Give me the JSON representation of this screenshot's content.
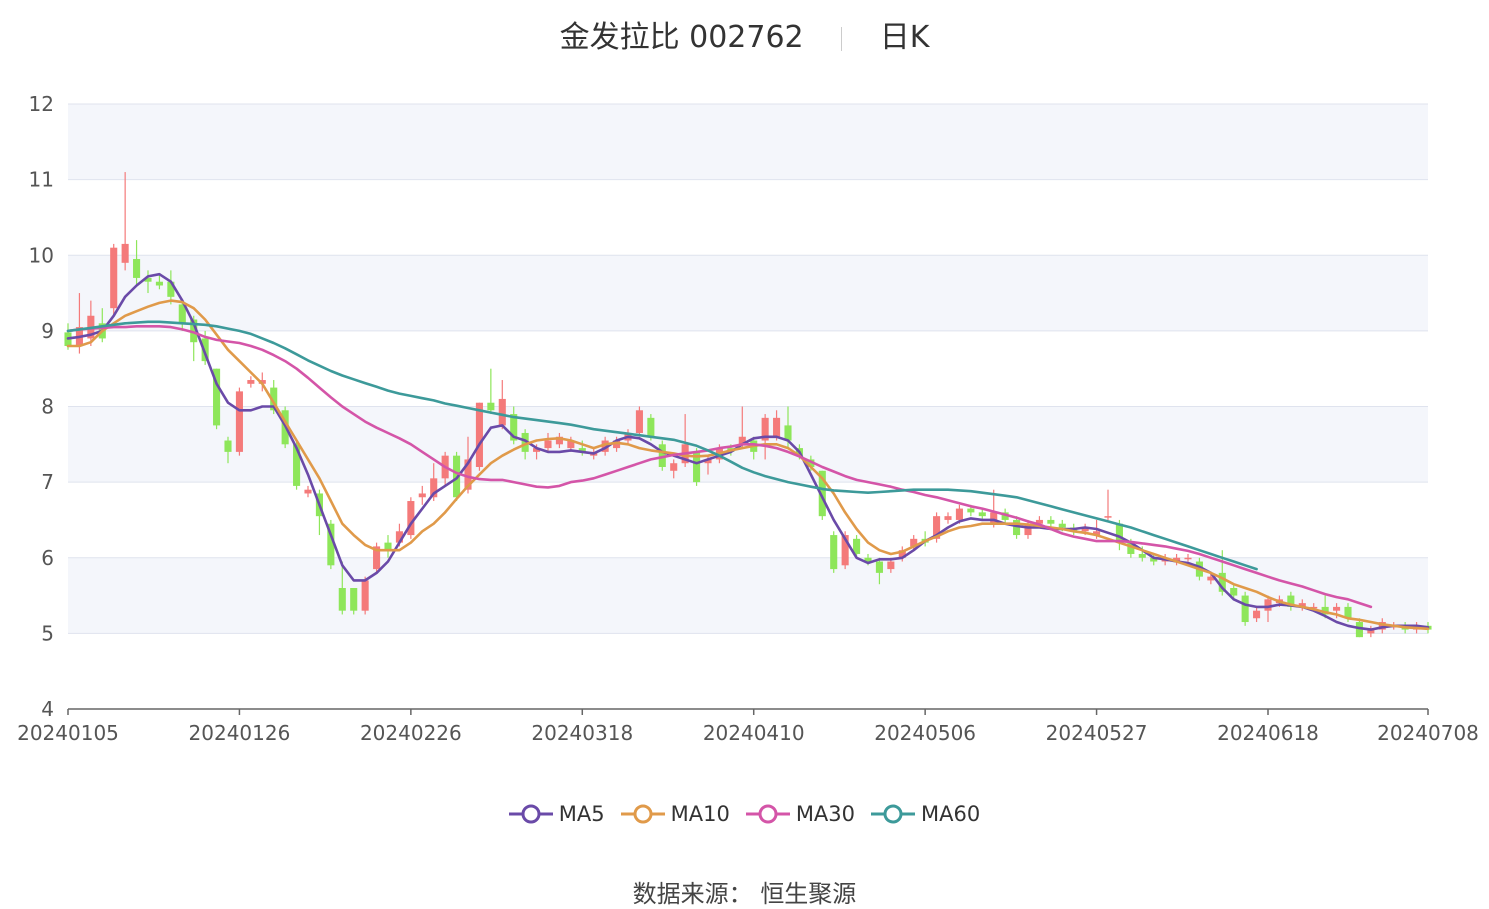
{
  "header": {
    "title": "金发拉比 002762",
    "period": "日K"
  },
  "footer": {
    "source_label": "数据来源：",
    "source_name": "恒生聚源"
  },
  "colors": {
    "up": "#f47a7a",
    "down": "#8ee65a",
    "band": "#f4f6fb",
    "grid": "#dfe3ee",
    "axis": "#555555",
    "MA5": "#6a4aa8",
    "MA10": "#e09a4a",
    "MA30": "#d455a8",
    "MA60": "#3d9a9a"
  },
  "chart_data": {
    "type": "candlestick",
    "yaxis": {
      "min": 4,
      "max": 12,
      "ticks": [
        4,
        5,
        6,
        7,
        8,
        9,
        10,
        11,
        12
      ]
    },
    "xaxis": {
      "tick_labels": [
        "20240105",
        "20240126",
        "20240226",
        "20240318",
        "20240410",
        "20240506",
        "20240527",
        "20240618",
        "20240708"
      ],
      "tick_indices": [
        0,
        15,
        30,
        45,
        60,
        75,
        90,
        105,
        119
      ]
    },
    "candles": [
      [
        8.98,
        8.8,
        9.1,
        8.75
      ],
      [
        8.8,
        9.05,
        9.5,
        8.7
      ],
      [
        8.9,
        9.2,
        9.4,
        8.8
      ],
      [
        9.1,
        8.9,
        9.3,
        8.85
      ],
      [
        9.3,
        10.1,
        10.15,
        9.2
      ],
      [
        9.9,
        10.15,
        11.1,
        9.8
      ],
      [
        9.95,
        9.7,
        10.2,
        9.6
      ],
      [
        9.7,
        9.65,
        9.8,
        9.5
      ],
      [
        9.65,
        9.6,
        9.75,
        9.55
      ],
      [
        9.65,
        9.45,
        9.8,
        9.35
      ],
      [
        9.35,
        9.1,
        9.4,
        9.0
      ],
      [
        9.15,
        8.85,
        9.2,
        8.6
      ],
      [
        8.9,
        8.6,
        9.0,
        8.55
      ],
      [
        8.5,
        7.75,
        8.5,
        7.7
      ],
      [
        7.55,
        7.4,
        7.6,
        7.25
      ],
      [
        7.4,
        8.2,
        8.25,
        7.35
      ],
      [
        8.3,
        8.35,
        8.4,
        8.25
      ],
      [
        8.3,
        8.35,
        8.45,
        8.2
      ],
      [
        8.25,
        7.95,
        8.35,
        7.9
      ],
      [
        7.95,
        7.5,
        8.0,
        7.45
      ],
      [
        7.5,
        6.95,
        7.55,
        6.9
      ],
      [
        6.85,
        6.9,
        6.95,
        6.8
      ],
      [
        6.85,
        6.55,
        6.9,
        6.3
      ],
      [
        6.45,
        5.9,
        6.5,
        5.85
      ],
      [
        5.6,
        5.3,
        5.95,
        5.25
      ],
      [
        5.6,
        5.3,
        5.6,
        5.25
      ],
      [
        5.3,
        5.7,
        5.75,
        5.25
      ],
      [
        5.85,
        6.15,
        6.2,
        5.8
      ],
      [
        6.2,
        6.1,
        6.3,
        6.0
      ],
      [
        6.2,
        6.35,
        6.45,
        6.15
      ],
      [
        6.3,
        6.75,
        6.8,
        6.25
      ],
      [
        6.8,
        6.85,
        6.95,
        6.7
      ],
      [
        6.8,
        7.05,
        7.25,
        6.75
      ],
      [
        7.05,
        7.35,
        7.4,
        6.95
      ],
      [
        7.35,
        6.8,
        7.4,
        6.75
      ],
      [
        6.9,
        7.3,
        7.6,
        6.85
      ],
      [
        7.2,
        8.05,
        8.05,
        7.15
      ],
      [
        8.05,
        7.95,
        8.5,
        7.9
      ],
      [
        7.75,
        8.1,
        8.35,
        7.7
      ],
      [
        7.9,
        7.55,
        8.0,
        7.5
      ],
      [
        7.65,
        7.4,
        7.7,
        7.3
      ],
      [
        7.4,
        7.45,
        7.5,
        7.3
      ],
      [
        7.45,
        7.55,
        7.65,
        7.4
      ],
      [
        7.5,
        7.6,
        7.65,
        7.45
      ],
      [
        7.45,
        7.55,
        7.6,
        7.4
      ],
      [
        7.45,
        7.4,
        7.55,
        7.35
      ],
      [
        7.35,
        7.4,
        7.45,
        7.3
      ],
      [
        7.4,
        7.55,
        7.6,
        7.35
      ],
      [
        7.45,
        7.55,
        7.6,
        7.4
      ],
      [
        7.55,
        7.65,
        7.7,
        7.5
      ],
      [
        7.65,
        7.95,
        8.0,
        7.6
      ],
      [
        7.85,
        7.6,
        7.9,
        7.55
      ],
      [
        7.5,
        7.2,
        7.55,
        7.15
      ],
      [
        7.15,
        7.25,
        7.3,
        7.05
      ],
      [
        7.25,
        7.5,
        7.9,
        7.2
      ],
      [
        7.4,
        7.0,
        7.45,
        6.95
      ],
      [
        7.25,
        7.3,
        7.35,
        7.1
      ],
      [
        7.3,
        7.45,
        7.5,
        7.25
      ],
      [
        7.45,
        7.4,
        7.5,
        7.35
      ],
      [
        7.5,
        7.6,
        8.0,
        7.45
      ],
      [
        7.55,
        7.4,
        7.6,
        7.3
      ],
      [
        7.55,
        7.85,
        7.9,
        7.3
      ],
      [
        7.6,
        7.85,
        7.95,
        7.55
      ],
      [
        7.75,
        7.55,
        8.0,
        7.45
      ],
      [
        7.45,
        7.35,
        7.5,
        7.3
      ],
      [
        7.3,
        7.2,
        7.35,
        7.15
      ],
      [
        7.15,
        6.55,
        7.15,
        6.5
      ],
      [
        6.3,
        5.85,
        6.35,
        5.8
      ],
      [
        5.9,
        6.3,
        6.35,
        5.85
      ],
      [
        6.25,
        6.05,
        6.3,
        6.0
      ],
      [
        6.0,
        5.95,
        6.05,
        5.9
      ],
      [
        5.95,
        5.8,
        6.0,
        5.65
      ],
      [
        5.85,
        5.95,
        6.0,
        5.8
      ],
      [
        6.0,
        6.1,
        6.15,
        5.95
      ],
      [
        6.15,
        6.25,
        6.3,
        6.1
      ],
      [
        6.25,
        6.2,
        6.35,
        6.15
      ],
      [
        6.25,
        6.55,
        6.6,
        6.2
      ],
      [
        6.5,
        6.55,
        6.6,
        6.45
      ],
      [
        6.5,
        6.65,
        6.7,
        6.45
      ],
      [
        6.65,
        6.6,
        6.7,
        6.55
      ],
      [
        6.6,
        6.55,
        6.65,
        6.5
      ],
      [
        6.45,
        6.6,
        6.9,
        6.4
      ],
      [
        6.6,
        6.5,
        6.65,
        6.45
      ],
      [
        6.5,
        6.3,
        6.55,
        6.25
      ],
      [
        6.3,
        6.45,
        6.5,
        6.25
      ],
      [
        6.45,
        6.5,
        6.55,
        6.4
      ],
      [
        6.5,
        6.45,
        6.55,
        6.4
      ],
      [
        6.45,
        6.4,
        6.5,
        6.35
      ],
      [
        6.4,
        6.35,
        6.45,
        6.3
      ],
      [
        6.35,
        6.4,
        6.45,
        6.3
      ],
      [
        6.3,
        6.35,
        6.5,
        6.25
      ],
      [
        6.55,
        6.55,
        6.9,
        6.5
      ],
      [
        6.45,
        6.2,
        6.5,
        6.1
      ],
      [
        6.2,
        6.05,
        6.25,
        6.0
      ],
      [
        6.05,
        6.0,
        6.15,
        5.95
      ],
      [
        6.0,
        5.95,
        6.05,
        5.9
      ],
      [
        5.95,
        6.0,
        6.05,
        5.9
      ],
      [
        5.95,
        6.0,
        6.05,
        5.9
      ],
      [
        6.0,
        6.0,
        6.05,
        5.95
      ],
      [
        5.95,
        5.75,
        6.0,
        5.7
      ],
      [
        5.7,
        5.75,
        5.8,
        5.65
      ],
      [
        5.8,
        5.55,
        6.1,
        5.5
      ],
      [
        5.6,
        5.5,
        5.65,
        5.45
      ],
      [
        5.5,
        5.15,
        5.55,
        5.1
      ],
      [
        5.2,
        5.3,
        5.35,
        5.15
      ],
      [
        5.3,
        5.45,
        5.5,
        5.15
      ],
      [
        5.4,
        5.45,
        5.5,
        5.35
      ],
      [
        5.5,
        5.35,
        5.55,
        5.3
      ],
      [
        5.35,
        5.4,
        5.45,
        5.3
      ],
      [
        5.35,
        5.35,
        5.4,
        5.3
      ],
      [
        5.35,
        5.25,
        5.5,
        5.2
      ],
      [
        5.3,
        5.35,
        5.4,
        5.2
      ],
      [
        5.35,
        5.2,
        5.4,
        5.15
      ],
      [
        5.15,
        4.95,
        5.2,
        4.95
      ],
      [
        5.0,
        5.05,
        5.1,
        4.95
      ],
      [
        5.05,
        5.15,
        5.2,
        5.0
      ],
      [
        5.1,
        5.1,
        5.15,
        5.05
      ],
      [
        5.1,
        5.05,
        5.15,
        5.0
      ],
      [
        5.05,
        5.1,
        5.15,
        5.0
      ],
      [
        5.1,
        5.05,
        5.15,
        5.0
      ]
    ],
    "series": [
      {
        "name": "MA5",
        "values": [
          8.9,
          8.92,
          8.95,
          9.0,
          9.2,
          9.45,
          9.6,
          9.72,
          9.75,
          9.65,
          9.4,
          9.1,
          8.7,
          8.3,
          8.05,
          7.95,
          7.95,
          8.0,
          8.0,
          7.75,
          7.45,
          7.1,
          6.7,
          6.3,
          5.9,
          5.7,
          5.7,
          5.8,
          5.95,
          6.2,
          6.45,
          6.65,
          6.85,
          6.95,
          7.05,
          7.25,
          7.5,
          7.72,
          7.75,
          7.6,
          7.55,
          7.45,
          7.4,
          7.4,
          7.42,
          7.4,
          7.38,
          7.45,
          7.55,
          7.6,
          7.58,
          7.5,
          7.4,
          7.35,
          7.3,
          7.25,
          7.3,
          7.35,
          7.4,
          7.5,
          7.58,
          7.6,
          7.6,
          7.55,
          7.4,
          7.1,
          6.8,
          6.5,
          6.25,
          6.0,
          5.93,
          5.98,
          5.98,
          6.0,
          6.1,
          6.22,
          6.3,
          6.4,
          6.48,
          6.52,
          6.5,
          6.5,
          6.45,
          6.42,
          6.4,
          6.4,
          6.38,
          6.38,
          6.38,
          6.4,
          6.38,
          6.33,
          6.28,
          6.2,
          6.1,
          6.0,
          5.98,
          5.95,
          5.93,
          5.88,
          5.8,
          5.6,
          5.45,
          5.38,
          5.35,
          5.35,
          5.38,
          5.37,
          5.35,
          5.3,
          5.23,
          5.15,
          5.1,
          5.07,
          5.05,
          5.08,
          5.1,
          5.1,
          5.1,
          5.08
        ]
      },
      {
        "name": "MA10",
        "values": [
          8.8,
          8.8,
          8.85,
          9.0,
          9.1,
          9.2,
          9.26,
          9.32,
          9.37,
          9.4,
          9.38,
          9.3,
          9.15,
          8.95,
          8.75,
          8.6,
          8.45,
          8.3,
          8.05,
          7.8,
          7.55,
          7.3,
          7.05,
          6.75,
          6.45,
          6.3,
          6.17,
          6.1,
          6.1,
          6.1,
          6.2,
          6.35,
          6.45,
          6.6,
          6.78,
          6.95,
          7.1,
          7.25,
          7.35,
          7.43,
          7.5,
          7.55,
          7.57,
          7.58,
          7.55,
          7.5,
          7.45,
          7.5,
          7.52,
          7.5,
          7.45,
          7.42,
          7.4,
          7.38,
          7.35,
          7.34,
          7.35,
          7.38,
          7.42,
          7.45,
          7.48,
          7.5,
          7.5,
          7.45,
          7.35,
          7.2,
          7.05,
          6.85,
          6.6,
          6.38,
          6.2,
          6.1,
          6.05,
          6.08,
          6.15,
          6.22,
          6.28,
          6.35,
          6.4,
          6.42,
          6.45,
          6.45,
          6.45,
          6.45,
          6.44,
          6.42,
          6.4,
          6.38,
          6.35,
          6.33,
          6.3,
          6.25,
          6.2,
          6.15,
          6.1,
          6.05,
          6.0,
          5.95,
          5.9,
          5.85,
          5.8,
          5.73,
          5.65,
          5.6,
          5.55,
          5.48,
          5.42,
          5.38,
          5.35,
          5.32,
          5.28,
          5.25,
          5.2,
          5.18,
          5.15,
          5.12,
          5.1,
          5.08,
          5.07,
          5.06
        ]
      },
      {
        "name": "MA30",
        "values": [
          9.0,
          9.02,
          9.03,
          9.04,
          9.05,
          9.05,
          9.06,
          9.06,
          9.06,
          9.05,
          9.02,
          8.98,
          8.92,
          8.88,
          8.86,
          8.84,
          8.8,
          8.75,
          8.68,
          8.6,
          8.5,
          8.38,
          8.25,
          8.12,
          8.0,
          7.9,
          7.8,
          7.72,
          7.65,
          7.58,
          7.5,
          7.4,
          7.3,
          7.2,
          7.12,
          7.07,
          7.04,
          7.03,
          7.03,
          7.0,
          6.97,
          6.94,
          6.93,
          6.95,
          7.0,
          7.02,
          7.05,
          7.1,
          7.15,
          7.2,
          7.25,
          7.3,
          7.33,
          7.36,
          7.38,
          7.4,
          7.42,
          7.45,
          7.47,
          7.5,
          7.5,
          7.48,
          7.45,
          7.4,
          7.34,
          7.27,
          7.2,
          7.14,
          7.08,
          7.03,
          7.0,
          6.97,
          6.94,
          6.9,
          6.87,
          6.83,
          6.8,
          6.76,
          6.72,
          6.68,
          6.65,
          6.61,
          6.57,
          6.53,
          6.48,
          6.44,
          6.38,
          6.32,
          6.28,
          6.25,
          6.22,
          6.22,
          6.22,
          6.21,
          6.19,
          6.17,
          6.15,
          6.12,
          6.09,
          6.05,
          6.0,
          5.95,
          5.9,
          5.85,
          5.8,
          5.75,
          5.7,
          5.66,
          5.62,
          5.57,
          5.52,
          5.48,
          5.45,
          5.4,
          5.35
        ]
      },
      {
        "name": "MA60",
        "values": [
          9.0,
          9.02,
          9.04,
          9.06,
          9.08,
          9.1,
          9.11,
          9.12,
          9.12,
          9.11,
          9.1,
          9.09,
          9.08,
          9.06,
          9.03,
          9.0,
          8.96,
          8.9,
          8.84,
          8.77,
          8.69,
          8.61,
          8.54,
          8.47,
          8.41,
          8.36,
          8.31,
          8.26,
          8.21,
          8.17,
          8.14,
          8.11,
          8.08,
          8.04,
          8.01,
          7.98,
          7.95,
          7.92,
          7.89,
          7.86,
          7.84,
          7.82,
          7.8,
          7.78,
          7.76,
          7.73,
          7.7,
          7.68,
          7.66,
          7.64,
          7.62,
          7.6,
          7.58,
          7.56,
          7.52,
          7.48,
          7.42,
          7.35,
          7.27,
          7.19,
          7.13,
          7.08,
          7.04,
          7.0,
          6.97,
          6.94,
          6.91,
          6.89,
          6.88,
          6.87,
          6.86,
          6.87,
          6.88,
          6.89,
          6.9,
          6.9,
          6.9,
          6.9,
          6.89,
          6.88,
          6.86,
          6.84,
          6.82,
          6.8,
          6.76,
          6.72,
          6.68,
          6.64,
          6.6,
          6.56,
          6.52,
          6.48,
          6.44,
          6.4,
          6.35,
          6.3,
          6.25,
          6.2,
          6.15,
          6.1,
          6.05,
          6.0,
          5.95,
          5.9,
          5.85
        ]
      }
    ],
    "legend": [
      "MA5",
      "MA10",
      "MA30",
      "MA60"
    ],
    "legend_position": "bottom",
    "grid": true
  }
}
